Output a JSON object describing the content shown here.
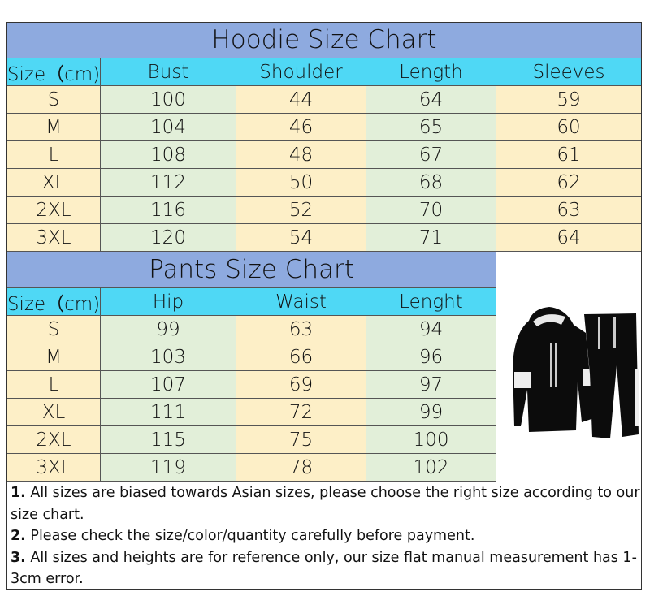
{
  "hoodie": {
    "title": "Hoodie Size Chart",
    "headers": [
      "Size（cm)",
      "Bust",
      "Shoulder",
      "Length",
      "Sleeves"
    ],
    "rows": [
      [
        "S",
        "100",
        "44",
        "64",
        "59"
      ],
      [
        "M",
        "104",
        "46",
        "65",
        "60"
      ],
      [
        "L",
        "108",
        "48",
        "67",
        "61"
      ],
      [
        "XL",
        "112",
        "50",
        "68",
        "62"
      ],
      [
        "2XL",
        "116",
        "52",
        "70",
        "63"
      ],
      [
        "3XL",
        "120",
        "54",
        "71",
        "64"
      ]
    ]
  },
  "pants": {
    "title": "Pants Size Chart",
    "headers": [
      "Size（cm)",
      "Hip",
      "Waist",
      "Lenght"
    ],
    "rows": [
      [
        "S",
        "99",
        "63",
        "94"
      ],
      [
        "M",
        "103",
        "66",
        "96"
      ],
      [
        "L",
        "107",
        "69",
        "97"
      ],
      [
        "XL",
        "111",
        "72",
        "99"
      ],
      [
        "2XL",
        "115",
        "75",
        "100"
      ],
      [
        "3XL",
        "119",
        "78",
        "102"
      ]
    ]
  },
  "product_image": "black hoodie and jogger pants set with white sleeve panels",
  "notes": [
    {
      "num": "1.",
      "text": " All sizes are biased towards Asian sizes, please choose the right size according to our size chart."
    },
    {
      "num": "2.",
      "text": " Please check the size/color/quantity carefully before payment."
    },
    {
      "num": "3.",
      "text": " All sizes and heights are for reference only, our size flat manual measurement has 1-3cm error."
    }
  ],
  "colors": {
    "title_bg": "#8eaadf",
    "header_bg": "#4fd8f5",
    "yellow_cell": "#fdefc7",
    "green_cell": "#e2efd9"
  }
}
